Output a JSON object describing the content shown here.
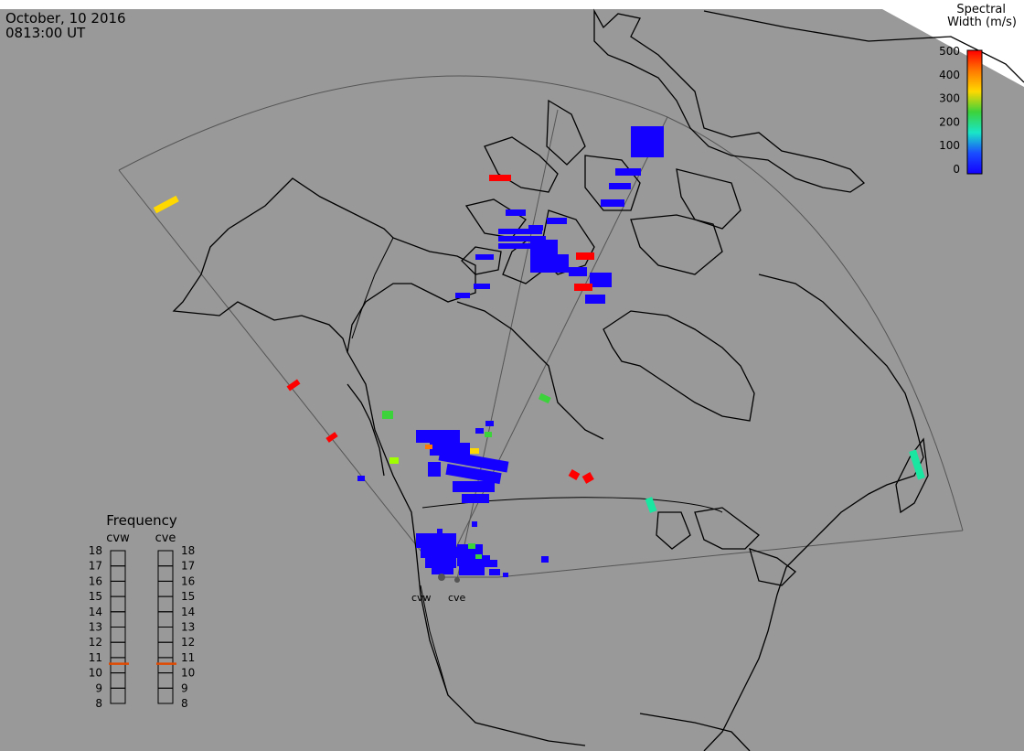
{
  "header": {
    "date": "October, 10 2016",
    "time": "0813:00 UT"
  },
  "colorbar": {
    "title_line1": "Spectral",
    "title_line2": "Width (m/s)",
    "ticks": [
      "500",
      "400",
      "300",
      "200",
      "100",
      "0"
    ],
    "colors": [
      "#ff0000",
      "#ff7a00",
      "#ffd800",
      "#3cd23c",
      "#19e6c8",
      "#1a4dff",
      "#1400ff"
    ]
  },
  "frequency": {
    "title": "Frequency",
    "radars": [
      "cvw",
      "cve"
    ],
    "ticks": [
      "18",
      "17",
      "16",
      "15",
      "14",
      "13",
      "12",
      "11",
      "10",
      "9",
      "8"
    ],
    "marker_mhz": [
      10.6,
      10.6
    ],
    "marker_color": "#e04a00"
  },
  "sites": {
    "labels": [
      "cvw",
      "cve"
    ]
  },
  "colors": {
    "ocean": "#999999",
    "coast": "#000000",
    "fov": "#555555",
    "scatter_low": "#1400ff",
    "scatter_high": "#ff0000",
    "scatter_yellow": "#ffd800",
    "scatter_green": "#3cd23c",
    "scatter_cyan": "#19e6a0"
  }
}
